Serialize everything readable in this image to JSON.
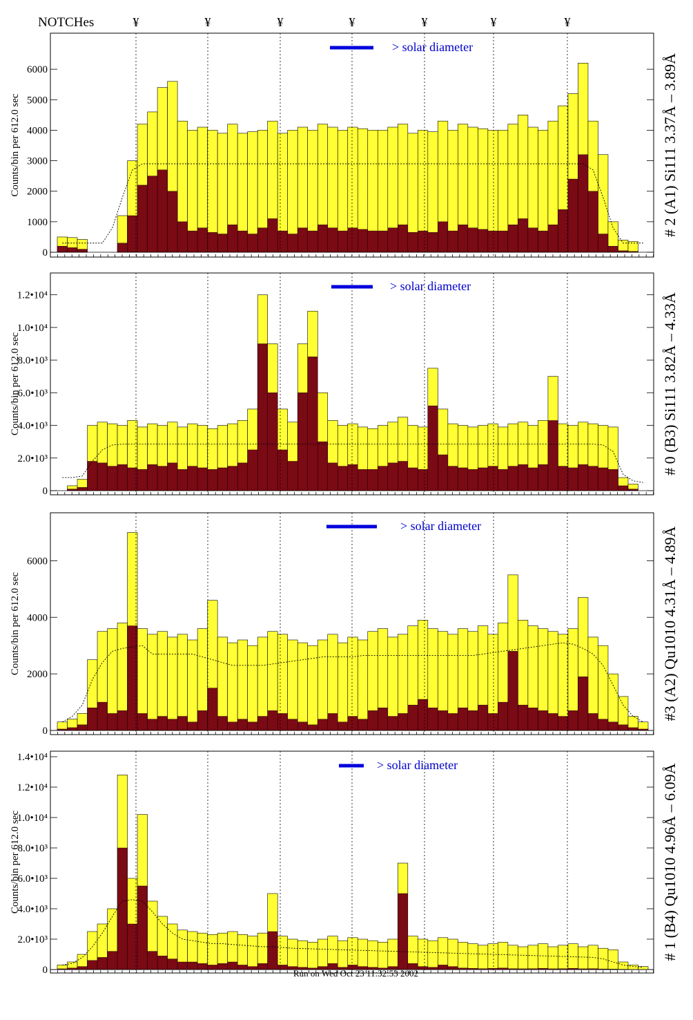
{
  "notches": {
    "title": "NOTCHes",
    "symbol": "¥",
    "count": 7
  },
  "solar_label": "> solar diameter",
  "footer": "Run on Wed Oct 23 11:32:53 2002",
  "colors": {
    "total_counts": "#ffff33",
    "line_counts": "#7a0a14",
    "solar_bar": "#0000dd",
    "frame": "#000000"
  },
  "chart_data": [
    {
      "type": "bar",
      "title": "# 2 (A1) Si111  3.37Å – 3.89Å",
      "ylabel": "Counts/bin per   612.0 sec",
      "ylim": [
        0,
        7000
      ],
      "yticks": [
        "0",
        "1000",
        "2000",
        "3000",
        "4000",
        "5000",
        "6000"
      ],
      "series": [
        {
          "values": [
            500,
            480,
            420,
            0,
            0,
            0,
            1200,
            3000,
            4200,
            4600,
            5400,
            5600,
            4300,
            4000,
            4100,
            4000,
            3900,
            4200,
            3900,
            3950,
            4000,
            4300,
            3900,
            4000,
            4100,
            4000,
            4200,
            4100,
            4000,
            4100,
            4050,
            4000,
            4000,
            4100,
            4200,
            3900,
            4000,
            3950,
            4300,
            4000,
            4200,
            4100,
            4050,
            4000,
            4000,
            4200,
            4500,
            4100,
            4000,
            4300,
            4800,
            5200,
            6200,
            4300,
            3200,
            1000,
            400,
            350,
            0
          ]
        },
        {
          "values": [
            200,
            150,
            100,
            0,
            0,
            0,
            300,
            1200,
            2200,
            2500,
            2700,
            2000,
            1000,
            700,
            800,
            650,
            600,
            900,
            700,
            600,
            800,
            1100,
            700,
            600,
            800,
            700,
            900,
            800,
            700,
            800,
            750,
            700,
            700,
            800,
            900,
            650,
            700,
            650,
            1000,
            700,
            900,
            800,
            750,
            700,
            700,
            900,
            1100,
            800,
            700,
            900,
            1400,
            2400,
            3200,
            2000,
            600,
            200,
            50,
            30,
            0
          ]
        },
        {
          "values": [
            300,
            300,
            300,
            300,
            300,
            800,
            1800,
            2700,
            2900,
            2900,
            2900,
            2900,
            2900,
            2900,
            2900,
            2900,
            2900,
            2900,
            2900,
            2900,
            2900,
            2900,
            2900,
            2900,
            2900,
            2900,
            2900,
            2900,
            2900,
            2900,
            2900,
            2900,
            2900,
            2900,
            2900,
            2900,
            2900,
            2900,
            2900,
            2900,
            2900,
            2900,
            2900,
            2900,
            2900,
            2900,
            2900,
            2900,
            2900,
            2900,
            2900,
            2900,
            2900,
            2700,
            1800,
            800,
            300,
            300,
            300
          ]
        }
      ]
    },
    {
      "type": "bar",
      "title": "# 0 (B3) Si111  3.82Å – 4.33Å",
      "ylabel": "Counts/bin per   612.0 sec",
      "ylim": [
        0,
        13000
      ],
      "yticks": [
        "0",
        "2.0•10³",
        "4.0•10³",
        "6.0•10³",
        "8.0•10³",
        "1.0•10⁴",
        "1.2•10⁴"
      ],
      "series": [
        {
          "values": [
            0,
            300,
            700,
            4000,
            4200,
            4100,
            4000,
            4300,
            3900,
            4100,
            4000,
            4200,
            3900,
            4100,
            4000,
            3800,
            4000,
            4100,
            4300,
            5000,
            12000,
            9000,
            5000,
            4200,
            9000,
            11000,
            6000,
            4300,
            4000,
            4100,
            3900,
            3800,
            4000,
            4200,
            4500,
            4000,
            3900,
            7500,
            5000,
            4100,
            4000,
            3900,
            4000,
            4100,
            3900,
            4100,
            4200,
            4000,
            4300,
            7000,
            4100,
            4000,
            4200,
            4100,
            4000,
            3900,
            800,
            400,
            0
          ]
        },
        {
          "values": [
            0,
            100,
            200,
            1800,
            1700,
            1500,
            1600,
            1400,
            1300,
            1600,
            1500,
            1700,
            1300,
            1500,
            1400,
            1300,
            1400,
            1500,
            1700,
            2500,
            9000,
            6000,
            2500,
            1800,
            6000,
            8200,
            3000,
            1700,
            1500,
            1600,
            1300,
            1300,
            1500,
            1700,
            1800,
            1400,
            1300,
            5200,
            2200,
            1500,
            1400,
            1300,
            1400,
            1500,
            1300,
            1500,
            1600,
            1400,
            1600,
            4300,
            1500,
            1400,
            1600,
            1500,
            1400,
            1300,
            300,
            100,
            0
          ]
        },
        {
          "values": [
            800,
            800,
            900,
            1800,
            2500,
            2800,
            2850,
            2850,
            2850,
            2850,
            2850,
            2850,
            2850,
            2850,
            2850,
            2850,
            2850,
            2850,
            2850,
            2850,
            2850,
            2850,
            2850,
            2850,
            2850,
            2850,
            2850,
            2850,
            2850,
            2850,
            2850,
            2850,
            2850,
            2850,
            2850,
            2850,
            2850,
            2850,
            2850,
            2850,
            2850,
            2850,
            2850,
            2850,
            2850,
            2850,
            2850,
            2850,
            2850,
            2850,
            2850,
            2850,
            2850,
            2850,
            2800,
            2400,
            1000,
            600,
            500
          ]
        }
      ]
    },
    {
      "type": "bar",
      "title": "#3 (A2) Qu1010  4.31Å – 4.89Å",
      "ylabel": "Counts/bin per   612.0 sec",
      "ylim": [
        0,
        7500
      ],
      "yticks": [
        "0",
        "2000",
        "4000",
        "6000"
      ],
      "series": [
        {
          "values": [
            300,
            400,
            600,
            2500,
            3500,
            3600,
            3800,
            7000,
            3600,
            3400,
            3500,
            3300,
            3400,
            3200,
            3600,
            4600,
            3300,
            3100,
            3200,
            3000,
            3300,
            3500,
            3400,
            3200,
            3100,
            3000,
            3200,
            3400,
            3100,
            3300,
            3200,
            3500,
            3600,
            3300,
            3400,
            3700,
            3900,
            3600,
            3500,
            3400,
            3600,
            3500,
            3700,
            3400,
            3800,
            5500,
            3900,
            3700,
            3600,
            3500,
            3400,
            3600,
            4700,
            3300,
            3000,
            2000,
            1200,
            500,
            300
          ]
        },
        {
          "values": [
            50,
            100,
            200,
            800,
            1000,
            600,
            700,
            3700,
            600,
            400,
            500,
            400,
            500,
            300,
            700,
            1500,
            500,
            300,
            400,
            300,
            500,
            700,
            600,
            400,
            300,
            200,
            400,
            600,
            300,
            500,
            400,
            700,
            800,
            500,
            600,
            900,
            1100,
            800,
            700,
            600,
            800,
            700,
            900,
            600,
            1000,
            2800,
            900,
            800,
            700,
            600,
            500,
            700,
            1900,
            600,
            400,
            300,
            200,
            100,
            50
          ]
        },
        {
          "values": [
            300,
            500,
            900,
            1800,
            2400,
            2800,
            2900,
            2950,
            3000,
            2700,
            2700,
            2700,
            2700,
            2700,
            2600,
            2500,
            2400,
            2300,
            2300,
            2300,
            2300,
            2350,
            2400,
            2450,
            2500,
            2550,
            2600,
            2600,
            2600,
            2600,
            2650,
            2650,
            2650,
            2650,
            2650,
            2650,
            2650,
            2650,
            2650,
            2650,
            2650,
            2650,
            2700,
            2750,
            2800,
            2850,
            2900,
            2950,
            3000,
            3050,
            3100,
            3050,
            2900,
            2700,
            2300,
            1600,
            900,
            500,
            300
          ]
        }
      ]
    },
    {
      "type": "bar",
      "title": "# 1 (B4) Qu1010 4.96Å – 6.09Å",
      "ylabel": "Counts/bin per   612.0 sec",
      "ylim": [
        0,
        14000
      ],
      "yticks": [
        "0",
        "2.0•10³",
        "4.0•10³",
        "6.0•10³",
        "8.0•10³",
        "1.0•10⁴",
        "1.2•10⁴",
        "1.4•10⁴"
      ],
      "series": [
        {
          "values": [
            300,
            500,
            1000,
            2500,
            3000,
            4000,
            12800,
            6000,
            10200,
            4500,
            3500,
            3000,
            2600,
            2500,
            2400,
            2300,
            2400,
            2500,
            2300,
            2200,
            2400,
            5000,
            2200,
            2000,
            1900,
            1800,
            2000,
            2200,
            1900,
            2100,
            2000,
            1900,
            1800,
            2000,
            7000,
            2200,
            2000,
            1900,
            2100,
            2000,
            1800,
            1700,
            1600,
            1700,
            1800,
            1600,
            1500,
            1600,
            1700,
            1500,
            1600,
            1700,
            1500,
            1600,
            1400,
            1300,
            500,
            300,
            200
          ]
        },
        {
          "values": [
            50,
            100,
            200,
            600,
            800,
            1200,
            8000,
            3000,
            5500,
            1200,
            900,
            700,
            500,
            500,
            400,
            300,
            400,
            500,
            300,
            200,
            400,
            2500,
            300,
            200,
            150,
            100,
            200,
            400,
            150,
            300,
            200,
            150,
            100,
            200,
            5000,
            400,
            200,
            150,
            300,
            200,
            100,
            80,
            60,
            80,
            100,
            60,
            50,
            60,
            80,
            50,
            60,
            80,
            50,
            60,
            40,
            30,
            20,
            10,
            10
          ]
        },
        {
          "values": [
            300,
            400,
            800,
            1500,
            2400,
            3500,
            4500,
            4600,
            4500,
            3800,
            3000,
            2400,
            2000,
            1900,
            1800,
            1700,
            1700,
            1650,
            1600,
            1550,
            1500,
            1500,
            1450,
            1400,
            1380,
            1360,
            1340,
            1320,
            1300,
            1280,
            1260,
            1240,
            1220,
            1200,
            1180,
            1160,
            1140,
            1120,
            1100,
            1080,
            1060,
            1040,
            1020,
            1000,
            980,
            960,
            940,
            920,
            900,
            880,
            860,
            840,
            820,
            800,
            700,
            500,
            300,
            200,
            150
          ]
        }
      ]
    }
  ]
}
